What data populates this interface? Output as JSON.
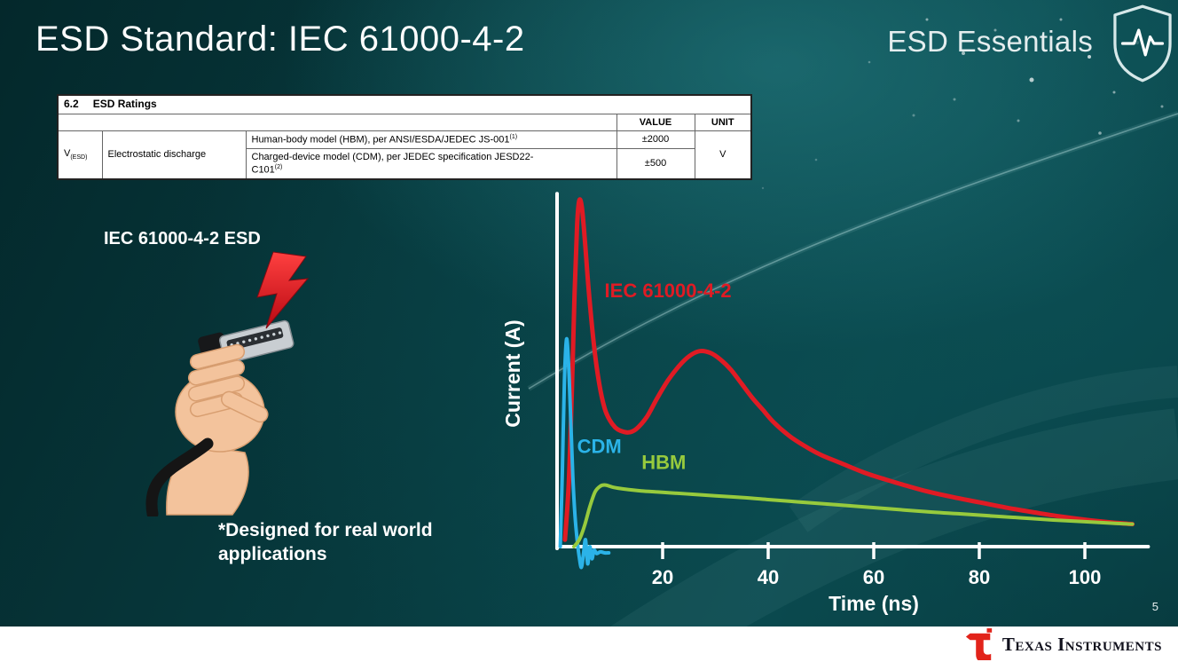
{
  "slide": {
    "title": "ESD Standard: IEC 61000-4-2",
    "brand": "ESD Essentials",
    "illustration_label": "IEC 61000-4-2 ESD",
    "footnote": "*Designed for real world applications",
    "page_number": "5"
  },
  "ratings_table": {
    "section_number": "6.2",
    "section_title": "ESD Ratings",
    "col_value": "VALUE",
    "col_unit": "UNIT",
    "param_symbol": "V",
    "param_symbol_sub": "(ESD)",
    "param_name": "Electrostatic discharge",
    "unit": "V",
    "rows": [
      {
        "model": "Human-body model (HBM), per ANSI/ESDA/JEDEC JS-001",
        "sup": "(1)",
        "value": "±2000"
      },
      {
        "model_line1": "Charged-device model (CDM), per JEDEC specification JESD22-",
        "model_line2": "C101",
        "sup": "(2)",
        "value": "±500"
      }
    ]
  },
  "footer": {
    "monogram": "ti",
    "brand": "Texas Instruments"
  },
  "chart_data": {
    "type": "line",
    "title": "",
    "xlabel": "Time (ns)",
    "ylabel": "Current (A)",
    "xlim": [
      0,
      112
    ],
    "ylim": [
      -0.08,
      1.08
    ],
    "x_ticks": [
      20,
      40,
      60,
      80,
      100
    ],
    "grid": false,
    "legend": "inline-labels",
    "axis_color": "#ffffff",
    "series": [
      {
        "name": "IEC 61000-4-2",
        "color": "#e01b24",
        "label_pos": [
          9,
          0.72
        ],
        "points": [
          [
            1.5,
            0.02
          ],
          [
            2.2,
            0.18
          ],
          [
            2.8,
            0.45
          ],
          [
            3.3,
            0.72
          ],
          [
            3.8,
            0.93
          ],
          [
            4.2,
            1.0
          ],
          [
            4.7,
            0.98
          ],
          [
            5.3,
            0.88
          ],
          [
            6,
            0.74
          ],
          [
            7,
            0.58
          ],
          [
            8,
            0.47
          ],
          [
            9,
            0.4
          ],
          [
            10,
            0.365
          ],
          [
            11,
            0.345
          ],
          [
            12,
            0.335
          ],
          [
            13.5,
            0.33
          ],
          [
            15,
            0.34
          ],
          [
            17,
            0.375
          ],
          [
            19,
            0.43
          ],
          [
            21,
            0.48
          ],
          [
            23,
            0.52
          ],
          [
            25,
            0.55
          ],
          [
            27,
            0.565
          ],
          [
            29,
            0.56
          ],
          [
            31,
            0.54
          ],
          [
            33,
            0.51
          ],
          [
            35,
            0.47
          ],
          [
            37,
            0.43
          ],
          [
            39,
            0.395
          ],
          [
            41,
            0.36
          ],
          [
            44,
            0.32
          ],
          [
            47,
            0.29
          ],
          [
            50,
            0.265
          ],
          [
            54,
            0.24
          ],
          [
            58,
            0.215
          ],
          [
            62,
            0.195
          ],
          [
            66,
            0.177
          ],
          [
            70,
            0.16
          ],
          [
            75,
            0.143
          ],
          [
            80,
            0.128
          ],
          [
            85,
            0.113
          ],
          [
            90,
            0.1
          ],
          [
            95,
            0.088
          ],
          [
            100,
            0.078
          ],
          [
            105,
            0.07
          ],
          [
            109,
            0.065
          ]
        ]
      },
      {
        "name": "CDM",
        "color": "#2bb3e8",
        "label_pos": [
          3.8,
          0.27
        ],
        "points": [
          [
            0.6,
            0.0
          ],
          [
            1.0,
            0.22
          ],
          [
            1.4,
            0.48
          ],
          [
            1.8,
            0.6
          ],
          [
            2.2,
            0.52
          ],
          [
            2.6,
            0.36
          ],
          [
            3.0,
            0.2
          ],
          [
            3.4,
            0.09
          ],
          [
            3.8,
            0.02
          ],
          [
            4.2,
            -0.03
          ],
          [
            4.6,
            -0.06
          ],
          [
            5.0,
            -0.02
          ],
          [
            5.4,
            0.02
          ],
          [
            5.8,
            -0.05
          ],
          [
            6.2,
            0.0
          ],
          [
            6.6,
            -0.035
          ],
          [
            7.0,
            -0.01
          ],
          [
            7.5,
            -0.02
          ],
          [
            8.2,
            -0.015
          ],
          [
            9.0,
            -0.018
          ],
          [
            9.8,
            -0.018
          ]
        ]
      },
      {
        "name": "HBM",
        "color": "#97ca3d",
        "label_pos": [
          16,
          0.225
        ],
        "points": [
          [
            3.2,
            0.0
          ],
          [
            4.2,
            0.02
          ],
          [
            5.2,
            0.06
          ],
          [
            6.2,
            0.115
          ],
          [
            7.2,
            0.158
          ],
          [
            8.2,
            0.175
          ],
          [
            9.2,
            0.178
          ],
          [
            10.5,
            0.172
          ],
          [
            12,
            0.168
          ],
          [
            14,
            0.164
          ],
          [
            16,
            0.161
          ],
          [
            19,
            0.158
          ],
          [
            22,
            0.155
          ],
          [
            26,
            0.151
          ],
          [
            30,
            0.147
          ],
          [
            35,
            0.142
          ],
          [
            40,
            0.136
          ],
          [
            46,
            0.129
          ],
          [
            52,
            0.122
          ],
          [
            58,
            0.115
          ],
          [
            64,
            0.108
          ],
          [
            70,
            0.101
          ],
          [
            76,
            0.095
          ],
          [
            82,
            0.089
          ],
          [
            88,
            0.083
          ],
          [
            94,
            0.077
          ],
          [
            100,
            0.072
          ],
          [
            105,
            0.068
          ],
          [
            109,
            0.065
          ]
        ]
      }
    ]
  }
}
